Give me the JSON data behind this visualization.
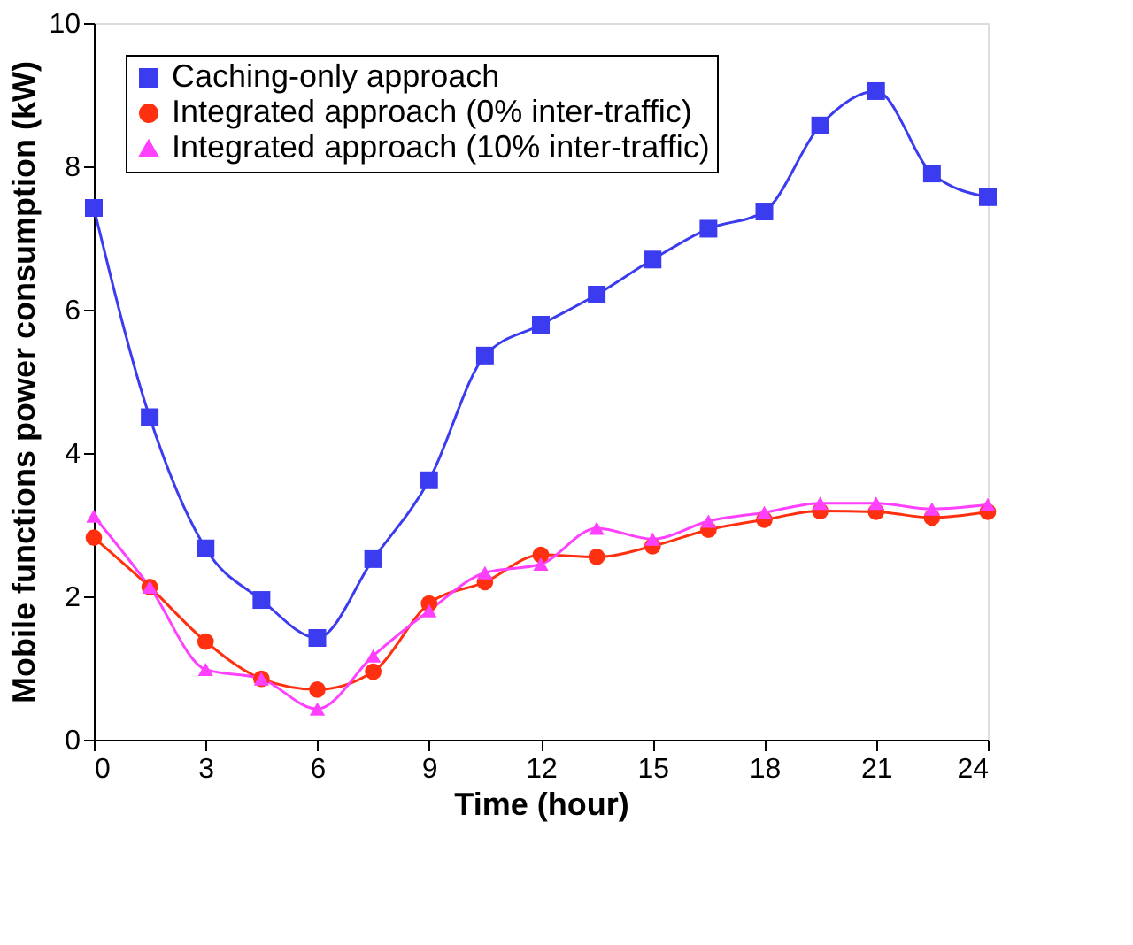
{
  "chart_data": {
    "type": "line",
    "xlabel": "Time (hour)",
    "ylabel": "Mobile functions power consumption (kW)",
    "x": [
      0,
      1.5,
      3,
      4.5,
      6,
      7.5,
      9,
      10.5,
      12,
      13.5,
      15,
      16.5,
      18,
      19.5,
      21,
      22.5,
      24
    ],
    "series": [
      {
        "name": "Caching-only approach",
        "color": "#3b3cf0",
        "marker": "square",
        "values": [
          7.42,
          4.5,
          2.67,
          1.95,
          1.42,
          2.52,
          3.62,
          5.36,
          5.79,
          6.21,
          6.7,
          7.13,
          7.37,
          8.57,
          9.05,
          7.9,
          7.57
        ]
      },
      {
        "name": "Integrated approach (0% inter-traffic)",
        "color": "#ff3010",
        "marker": "circle",
        "values": [
          2.82,
          2.13,
          1.37,
          0.85,
          0.7,
          0.95,
          1.9,
          2.2,
          2.58,
          2.55,
          2.7,
          2.93,
          3.07,
          3.19,
          3.18,
          3.1,
          3.18
        ]
      },
      {
        "name": "Integrated approach (10% inter-traffic)",
        "color": "#ff40ff",
        "marker": "triangle",
        "values": [
          3.12,
          2.13,
          0.98,
          0.85,
          0.43,
          1.17,
          1.8,
          2.33,
          2.45,
          2.95,
          2.8,
          3.05,
          3.17,
          3.3,
          3.3,
          3.22,
          3.28
        ]
      }
    ],
    "xlim": [
      0,
      24
    ],
    "xticks": [
      0,
      3,
      6,
      9,
      12,
      15,
      18,
      21,
      24
    ],
    "ylim": [
      0,
      10
    ],
    "yticks": [
      0,
      2,
      4,
      6,
      8,
      10
    ],
    "grid": false,
    "legend": "top left",
    "line_style": "solid"
  }
}
